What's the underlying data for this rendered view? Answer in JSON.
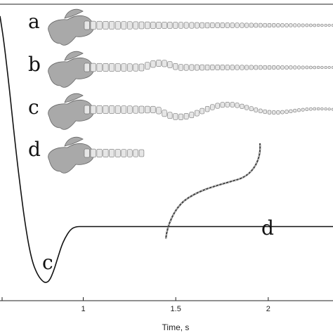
{
  "chart_data": {
    "type": "line",
    "xlabel": "Time, s",
    "xticks": [
      1,
      1.5,
      2
    ],
    "xlim": [
      0.55,
      2.35
    ],
    "ylim": [
      0,
      1
    ],
    "grid": false,
    "series": [
      {
        "x": [
          0.55,
          0.57,
          0.6,
          0.63,
          0.66,
          0.69,
          0.72,
          0.75,
          0.78,
          0.8,
          0.82,
          0.84,
          0.86,
          0.88,
          0.9,
          0.93,
          0.96,
          1.0,
          1.2,
          1.5,
          2.0,
          2.35
        ],
        "y": [
          0.96,
          0.88,
          0.72,
          0.54,
          0.38,
          0.24,
          0.14,
          0.09,
          0.065,
          0.06,
          0.07,
          0.1,
          0.14,
          0.18,
          0.21,
          0.24,
          0.25,
          0.25,
          0.25,
          0.25,
          0.25,
          0.25
        ]
      }
    ],
    "annotations": [
      "a",
      "b",
      "c",
      "d",
      "c",
      "d"
    ]
  }
}
